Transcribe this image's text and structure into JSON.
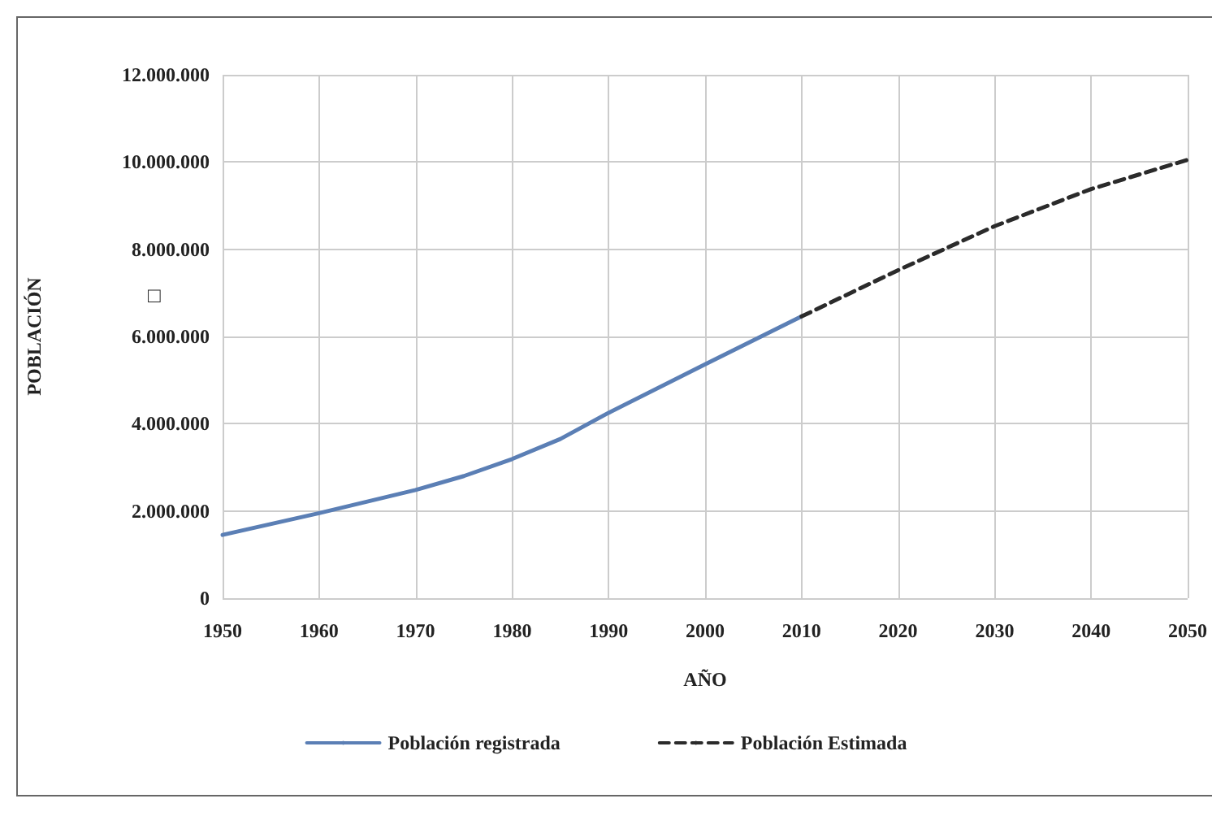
{
  "chart_data": {
    "type": "line",
    "xlabel": "AÑO",
    "ylabel": "POBLACIÓN",
    "annotations": [
      "□"
    ],
    "xlim": [
      1950,
      2050
    ],
    "xticks": [
      1950,
      1960,
      1970,
      1980,
      1990,
      2000,
      2010,
      2020,
      2030,
      2040,
      2050
    ],
    "ylim": [
      0,
      12000000
    ],
    "yticks": [
      {
        "value": 0,
        "label": "0"
      },
      {
        "value": 2000000,
        "label": "2.000.000"
      },
      {
        "value": 4000000,
        "label": "4.000.000"
      },
      {
        "value": 6000000,
        "label": "6.000.000"
      },
      {
        "value": 8000000,
        "label": "8.000.000"
      },
      {
        "value": 10000000,
        "label": "10.000.000"
      },
      {
        "value": 12000000,
        "label": "12.000.000"
      }
    ],
    "grid": true,
    "legend": "bottom",
    "marker": "none",
    "series": [
      {
        "name": "Población registrada",
        "color": "#5b7fb5",
        "line_style": "solid",
        "x": [
          1950,
          1960,
          1970,
          1975,
          1980,
          1985,
          1990,
          2000,
          2010
        ],
        "values": [
          1450000,
          1950000,
          2480000,
          2800000,
          3190000,
          3650000,
          4250000,
          5360000,
          6460000
        ]
      },
      {
        "name": "Población Estimada",
        "color": "#2b2b2b",
        "line_style": "dashed",
        "x": [
          2010,
          2020,
          2030,
          2040,
          2050
        ],
        "values": [
          6460000,
          7520000,
          8530000,
          9380000,
          10050000
        ]
      }
    ]
  }
}
